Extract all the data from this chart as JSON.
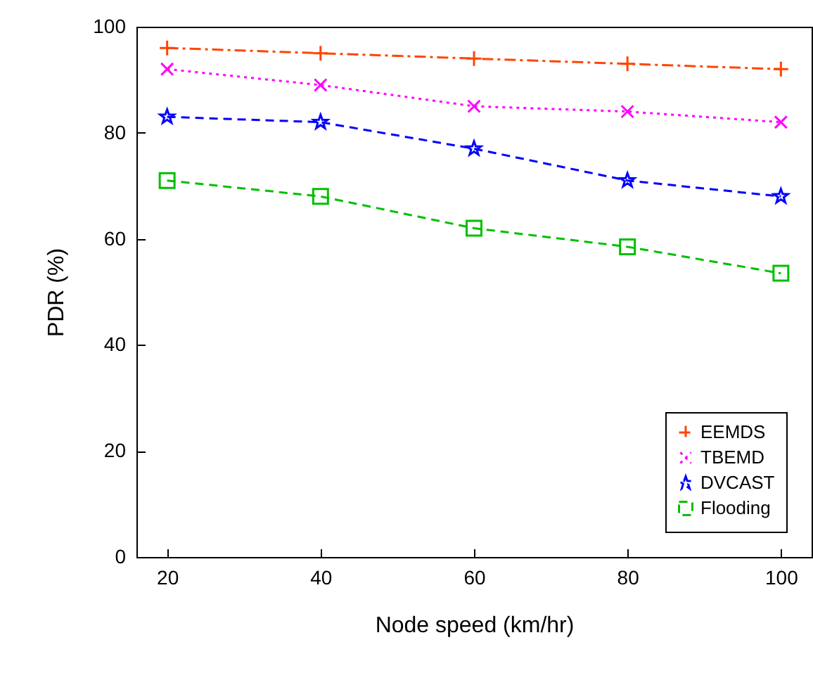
{
  "chart_data": {
    "type": "line",
    "xlabel": "Node speed (km/hr)",
    "ylabel": "PDR (%)",
    "x": [
      20,
      40,
      60,
      80,
      100
    ],
    "series": [
      {
        "name": "EEMDS",
        "color": "#ff4500",
        "marker": "cross",
        "line_style": "dashdot",
        "values": [
          96,
          95,
          94,
          93,
          92
        ]
      },
      {
        "name": "TBEMD",
        "color": "#ff00ff",
        "marker": "x",
        "line_style": "dotted",
        "values": [
          92,
          89,
          85,
          84,
          82
        ]
      },
      {
        "name": "DVCAST",
        "color": "#0000ff",
        "marker": "star",
        "line_style": "dashed",
        "values": [
          83,
          82,
          77,
          71,
          68
        ]
      },
      {
        "name": "Flooding",
        "color": "#00c000",
        "marker": "square",
        "line_style": "dashed",
        "values": [
          71,
          68,
          62,
          58.5,
          53.5
        ]
      }
    ],
    "xlim": [
      16,
      104
    ],
    "xticks": [
      20,
      40,
      60,
      80,
      100
    ],
    "ylim": [
      0,
      100
    ],
    "yticks": [
      0,
      20,
      40,
      60,
      80,
      100
    ],
    "grid": false,
    "legend": "bottom right"
  }
}
